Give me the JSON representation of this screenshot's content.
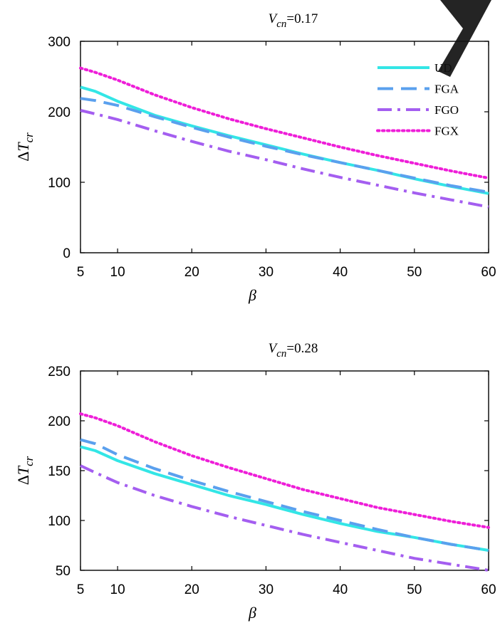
{
  "chart_data": [
    {
      "type": "line",
      "title": {
        "sym": "V",
        "sub": "cn",
        "rest": "=0.17"
      },
      "xlabel": "β",
      "ylabel": {
        "main": "ΔT",
        "sub": "cr"
      },
      "xlim": [
        5,
        60
      ],
      "ylim": [
        0,
        300
      ],
      "xticks": [
        5,
        10,
        20,
        30,
        40,
        50,
        60
      ],
      "yticks": [
        0,
        100,
        200,
        300
      ],
      "grid": false,
      "legend": "top-right",
      "series": [
        {
          "name": "UD",
          "color": "#33e6e6",
          "style": "solid",
          "x": [
            5,
            7,
            10,
            15,
            20,
            25,
            30,
            35,
            40,
            45,
            50,
            55,
            60
          ],
          "y": [
            235,
            229,
            215,
            195,
            180,
            166,
            153,
            140,
            128,
            117,
            105,
            94,
            84
          ]
        },
        {
          "name": "FGA",
          "color": "#5aa0ee",
          "style": "dashed",
          "x": [
            5,
            7,
            10,
            15,
            20,
            25,
            30,
            35,
            40,
            45,
            50,
            55,
            60
          ],
          "y": [
            219,
            216,
            209,
            193,
            178,
            164,
            151,
            139,
            128,
            117,
            106,
            95,
            86
          ]
        },
        {
          "name": "FGO",
          "color": "#a45ef0",
          "style": "dashdot",
          "x": [
            5,
            7,
            10,
            15,
            20,
            25,
            30,
            35,
            40,
            45,
            50,
            55,
            60
          ],
          "y": [
            202,
            197,
            189,
            173,
            158,
            144,
            132,
            119,
            107,
            96,
            85,
            75,
            65
          ]
        },
        {
          "name": "FGX",
          "color": "#ee1ed8",
          "style": "dotted",
          "x": [
            5,
            7,
            10,
            15,
            20,
            25,
            30,
            35,
            40,
            45,
            50,
            55,
            60
          ],
          "y": [
            262,
            256,
            245,
            224,
            206,
            190,
            176,
            163,
            150,
            138,
            127,
            116,
            106
          ]
        }
      ]
    },
    {
      "type": "line",
      "title": {
        "sym": "V",
        "sub": "cn",
        "rest": "=0.28"
      },
      "xlabel": "β",
      "ylabel": {
        "main": "ΔT",
        "sub": "cr"
      },
      "xlim": [
        5,
        60
      ],
      "ylim": [
        50,
        250
      ],
      "xticks": [
        5,
        10,
        20,
        30,
        40,
        50,
        60
      ],
      "yticks": [
        50,
        100,
        150,
        200,
        250
      ],
      "grid": false,
      "legend": "none",
      "series": [
        {
          "name": "UD",
          "color": "#33e6e6",
          "style": "solid",
          "x": [
            5,
            7,
            10,
            15,
            20,
            25,
            30,
            35,
            40,
            45,
            50,
            55,
            60
          ],
          "y": [
            174,
            170,
            160,
            147,
            136,
            125,
            116,
            106,
            97,
            89,
            83,
            76,
            70
          ]
        },
        {
          "name": "FGA",
          "color": "#5aa0ee",
          "style": "dashed",
          "x": [
            5,
            7,
            10,
            15,
            20,
            25,
            30,
            35,
            40,
            45,
            50,
            55,
            60
          ],
          "y": [
            181,
            177,
            166,
            152,
            140,
            129,
            119,
            109,
            100,
            91,
            83,
            76,
            70
          ]
        },
        {
          "name": "FGO",
          "color": "#a45ef0",
          "style": "dashdot",
          "x": [
            5,
            7,
            10,
            15,
            20,
            25,
            30,
            35,
            40,
            45,
            50,
            55,
            60
          ],
          "y": [
            155,
            148,
            138,
            125,
            114,
            104,
            95,
            86,
            78,
            70,
            62,
            56,
            50
          ]
        },
        {
          "name": "FGX",
          "color": "#ee1ed8",
          "style": "dotted",
          "x": [
            5,
            7,
            10,
            15,
            20,
            25,
            30,
            35,
            40,
            45,
            50,
            55,
            60
          ],
          "y": [
            207,
            203,
            195,
            179,
            165,
            153,
            142,
            131,
            122,
            113,
            106,
            99,
            93
          ]
        }
      ]
    }
  ]
}
